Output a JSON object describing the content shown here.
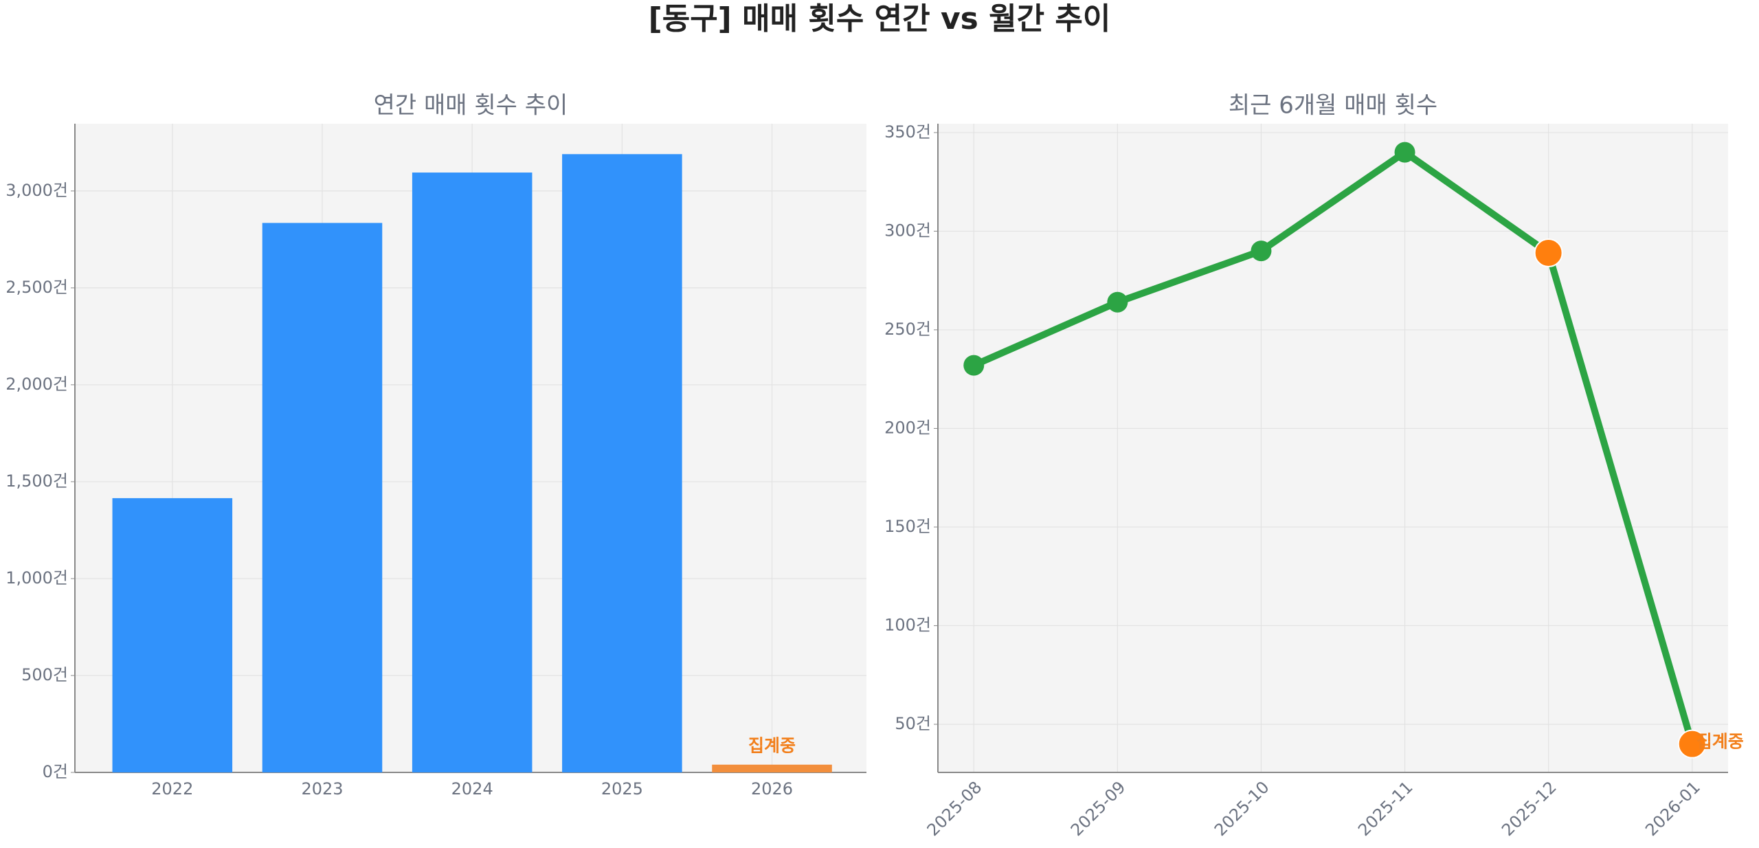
{
  "title": "[동구] 매매 횟수 연간 vs 월간 추이",
  "chart_data": [
    {
      "type": "bar",
      "title": "연간 매매 횟수 추이",
      "categories": [
        "2022",
        "2023",
        "2024",
        "2025",
        "2026"
      ],
      "values": [
        1415,
        2835,
        3095,
        3190,
        40
      ],
      "colors": [
        "#3192fb",
        "#3192fb",
        "#3192fb",
        "#3192fb",
        "#f28e3c"
      ],
      "annotation": "집계중",
      "annotation_color": "#f27f1b",
      "ylim": [
        0,
        3347
      ],
      "yticks": [
        {
          "value": 0,
          "label": "0건"
        },
        {
          "value": 500,
          "label": "500건"
        },
        {
          "value": 1000,
          "label": "1,000건"
        },
        {
          "value": 1500,
          "label": "1,500건"
        },
        {
          "value": 2000,
          "label": "2,000건"
        },
        {
          "value": 2500,
          "label": "2,500건"
        },
        {
          "value": 3000,
          "label": "3,000건"
        }
      ],
      "grid": true
    },
    {
      "type": "line",
      "title": "최근 6개월 매매 횟수",
      "categories": [
        "2025-08",
        "2025-09",
        "2025-10",
        "2025-11",
        "2025-12",
        "2026-01"
      ],
      "values": [
        232,
        264,
        290,
        340,
        289,
        40
      ],
      "color": "#2ca444",
      "marker_colors": [
        "#2ca444",
        "#2ca444",
        "#2ca444",
        "#2ca444",
        "#ff7f0e",
        "#ff7f0e"
      ],
      "annotation": "집계중",
      "annotation_color": "#f27f1b",
      "ylim": [
        25.6,
        354.5
      ],
      "yticks": [
        {
          "value": 50,
          "label": "50건"
        },
        {
          "value": 100,
          "label": "100건"
        },
        {
          "value": 150,
          "label": "150건"
        },
        {
          "value": 200,
          "label": "200건"
        },
        {
          "value": 250,
          "label": "250건"
        },
        {
          "value": 300,
          "label": "300건"
        },
        {
          "value": 350,
          "label": "350건"
        }
      ],
      "grid": true
    }
  ]
}
